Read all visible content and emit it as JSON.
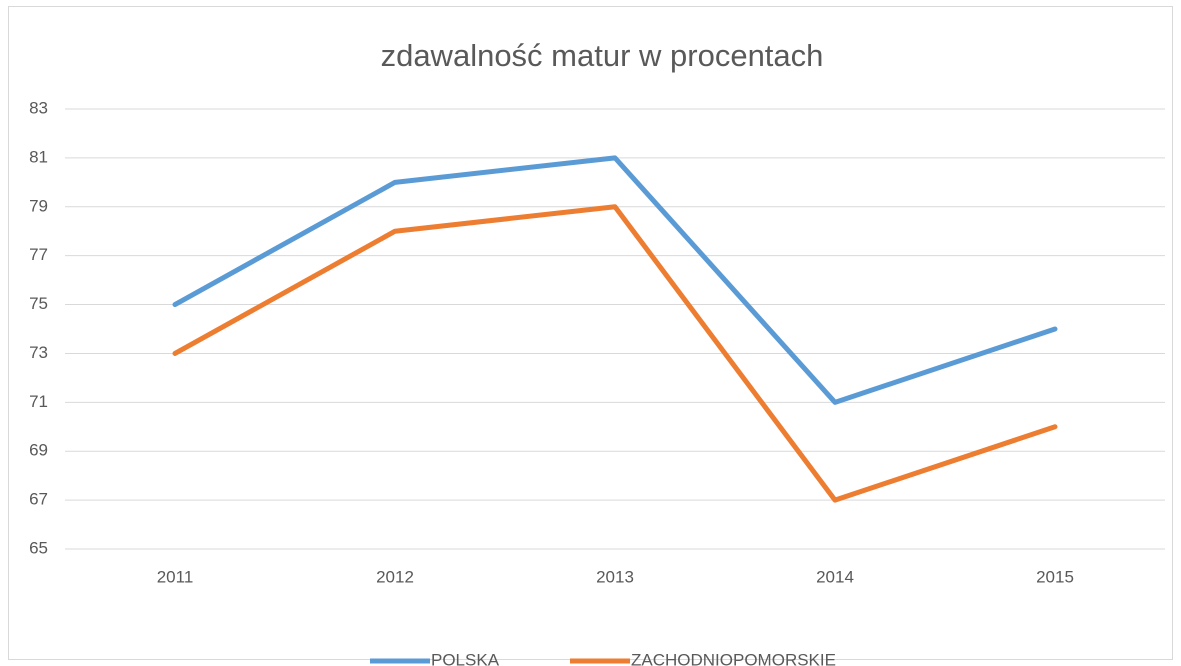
{
  "chart_data": {
    "type": "line",
    "title": "zdawalność matur w procentach",
    "categories": [
      "2011",
      "2012",
      "2013",
      "2014",
      "2015"
    ],
    "series": [
      {
        "name": "POLSKA",
        "color": "#5b9bd5",
        "values": [
          75,
          80,
          81,
          71,
          74
        ]
      },
      {
        "name": "ZACHODNIOPOMORSKIE",
        "color": "#ed7d31",
        "values": [
          73,
          78,
          79,
          67,
          70
        ]
      }
    ],
    "ylim": [
      65,
      83
    ],
    "yticks": [
      65,
      67,
      69,
      71,
      73,
      75,
      77,
      79,
      81,
      83
    ],
    "grid": true,
    "legend": "bottom"
  }
}
